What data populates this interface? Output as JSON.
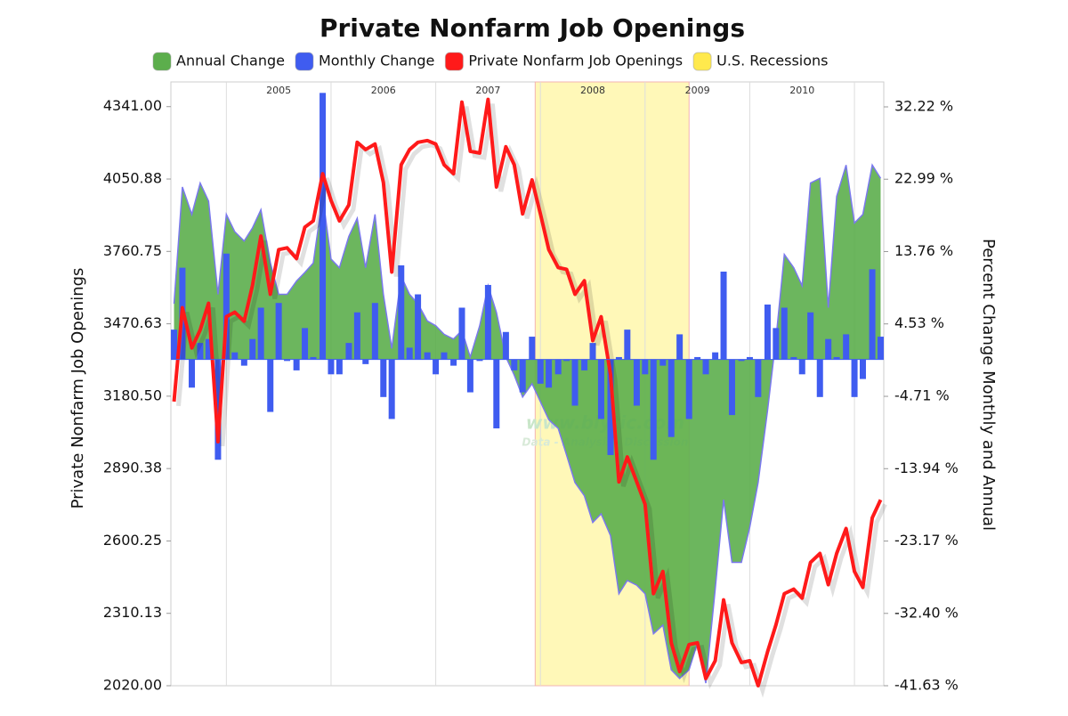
{
  "chart_data": {
    "type": "combo",
    "title": "Private Nonfarm Job Openings",
    "y_label": "Private Nonfarm Job Openings",
    "y2_label": "Percent Change Monthly and Annual",
    "watermark": [
      "www.blytic.com",
      "Data - Analysis - Discussion"
    ],
    "x": [
      2004.5,
      2004.58,
      2004.67,
      2004.75,
      2004.83,
      2004.92,
      2005,
      2005.08,
      2005.17,
      2005.25,
      2005.33,
      2005.42,
      2005.5,
      2005.58,
      2005.67,
      2005.75,
      2005.83,
      2005.92,
      2006,
      2006.08,
      2006.17,
      2006.25,
      2006.33,
      2006.42,
      2006.5,
      2006.58,
      2006.67,
      2006.75,
      2006.83,
      2006.92,
      2007,
      2007.08,
      2007.17,
      2007.25,
      2007.33,
      2007.42,
      2007.5,
      2007.58,
      2007.67,
      2007.75,
      2007.83,
      2007.92,
      2008,
      2008.08,
      2008.17,
      2008.25,
      2008.33,
      2008.42,
      2008.5,
      2008.58,
      2008.67,
      2008.75,
      2008.83,
      2008.92,
      2009,
      2009.08,
      2009.17,
      2009.25,
      2009.33,
      2009.42,
      2009.5,
      2009.58,
      2009.67,
      2009.75,
      2009.83,
      2009.92,
      2010,
      2010.08,
      2010.17,
      2010.25,
      2010.33,
      2010.42,
      2010.5,
      2010.58,
      2010.67,
      2010.75,
      2010.83,
      2010.92,
      2011,
      2011.08,
      2011.17,
      2011.25
    ],
    "xlim": [
      2004.47,
      2011.28
    ],
    "xticks": [
      {
        "value": 2005.5,
        "label": "2005"
      },
      {
        "value": 2006.5,
        "label": "2006"
      },
      {
        "value": 2007.5,
        "label": "2007"
      },
      {
        "value": 2008.5,
        "label": "2008"
      },
      {
        "value": 2009.5,
        "label": "2009"
      },
      {
        "value": 2010.5,
        "label": "2010"
      }
    ],
    "xgrid": [
      2005,
      2006,
      2007,
      2008,
      2009,
      2010,
      2011
    ],
    "ylim": [
      2020,
      4440
    ],
    "yticks": [
      {
        "value": 4341,
        "label": "4341.00"
      },
      {
        "value": 4050.88,
        "label": "4050.88"
      },
      {
        "value": 3760.75,
        "label": "3760.75"
      },
      {
        "value": 3470.63,
        "label": "3470.63"
      },
      {
        "value": 3180.5,
        "label": "3180.50"
      },
      {
        "value": 2890.38,
        "label": "2890.38"
      },
      {
        "value": 2600.25,
        "label": "2600.25"
      },
      {
        "value": 2310.13,
        "label": "2310.13"
      },
      {
        "value": 2020,
        "label": "2020.00"
      }
    ],
    "y2lim": [
      -41.63,
      35.4
    ],
    "y2ticks": [
      {
        "value": 32.22,
        "label": "32.22 %"
      },
      {
        "value": 22.99,
        "label": "22.99 %"
      },
      {
        "value": 13.76,
        "label": "13.76 %"
      },
      {
        "value": 4.53,
        "label": "4.53 %"
      },
      {
        "value": -4.71,
        "label": "-4.71 %"
      },
      {
        "value": -13.94,
        "label": "-13.94 %"
      },
      {
        "value": -23.17,
        "label": "-23.17 %"
      },
      {
        "value": -32.4,
        "label": "-32.40 %"
      },
      {
        "value": -41.63,
        "label": "-41.63 %"
      }
    ],
    "series": [
      {
        "name": "Annual Change",
        "type": "area",
        "axis": "y2",
        "color": "#5cae4c",
        "values": [
          7.1,
          22.0,
          18.5,
          22.5,
          20.2,
          8.3,
          18.5,
          16.3,
          15.1,
          16.8,
          19.1,
          12.3,
          8.3,
          8.3,
          10.0,
          11.1,
          12.3,
          20.8,
          12.8,
          11.7,
          15.7,
          18.0,
          11.7,
          18.5,
          8.3,
          1.4,
          10.6,
          8.3,
          7.1,
          4.9,
          4.3,
          3.2,
          2.6,
          3.7,
          0.3,
          4.3,
          9.4,
          6.0,
          0.3,
          -2.0,
          -4.8,
          -3.1,
          -5.4,
          -7.7,
          -8.8,
          -12.2,
          -15.7,
          -17.4,
          -20.8,
          -19.7,
          -22.5,
          -29.9,
          -28.2,
          -28.8,
          -29.9,
          -35.0,
          -33.9,
          -39.6,
          -40.7,
          -39.6,
          -36.2,
          -41.3,
          -29.3,
          -17.9,
          -25.9,
          -25.9,
          -21.4,
          -15.7,
          -6.5,
          2.6,
          13.4,
          11.7,
          9.4,
          22.5,
          23.1,
          6.6,
          20.8,
          24.8,
          17.4,
          18.5,
          24.8,
          23.1
        ]
      },
      {
        "name": "Monthly Change",
        "type": "bar",
        "axis": "y2",
        "color": "#3f5cf0",
        "values": [
          3.8,
          11.7,
          -3.6,
          2.1,
          2.6,
          -12.8,
          13.5,
          0.9,
          -0.8,
          2.6,
          6.6,
          -6.7,
          7.2,
          -0.2,
          -1.4,
          4.0,
          0.3,
          34.0,
          -1.9,
          -1.9,
          2.1,
          6.0,
          -0.6,
          7.2,
          -4.8,
          -7.6,
          12.0,
          1.5,
          8.3,
          0.9,
          -1.9,
          0.9,
          -0.8,
          6.6,
          -4.2,
          -0.2,
          9.5,
          -8.8,
          3.5,
          -1.4,
          -4.2,
          2.9,
          -3.1,
          -3.6,
          -1.9,
          -0.2,
          -5.9,
          -1.4,
          2.1,
          -7.6,
          -12.2,
          0.3,
          3.8,
          -5.9,
          -1.9,
          -12.8,
          -0.8,
          -9.9,
          3.2,
          -7.6,
          0.3,
          -1.9,
          0.9,
          11.2,
          -7.1,
          -0.2,
          0.3,
          -4.8,
          7.0,
          4.0,
          6.6,
          0.3,
          -1.9,
          6.0,
          -4.8,
          2.6,
          0.3,
          3.2,
          -4.8,
          -2.5,
          11.5,
          2.9
        ]
      },
      {
        "name": "Private Nonfarm Job Openings",
        "type": "line",
        "axis": "y",
        "color": "#ff1a1a",
        "values": [
          3159,
          3535,
          3374,
          3446,
          3553,
          2998,
          3499,
          3517,
          3481,
          3625,
          3822,
          3589,
          3768,
          3775,
          3732,
          3858,
          3883,
          4072,
          3965,
          3883,
          3947,
          4198,
          4169,
          4191,
          4037,
          3678,
          4108,
          4169,
          4198,
          4205,
          4191,
          4108,
          4072,
          4359,
          4162,
          4155,
          4370,
          4019,
          4180,
          4108,
          3911,
          4047,
          3911,
          3768,
          3696,
          3689,
          3589,
          3643,
          3403,
          3499,
          3267,
          2837,
          2937,
          2837,
          2747,
          2389,
          2478,
          2192,
          2077,
          2185,
          2192,
          2049,
          2120,
          2364,
          2192,
          2113,
          2120,
          2020,
          2156,
          2264,
          2389,
          2407,
          2371,
          2514,
          2550,
          2425,
          2550,
          2650,
          2478,
          2414,
          2693,
          2765
        ]
      }
    ],
    "bands": [
      {
        "name": "U.S. Recessions",
        "color": "#fff8b8",
        "start": 2007.95,
        "end": 2009.42
      }
    ],
    "grid": true
  }
}
